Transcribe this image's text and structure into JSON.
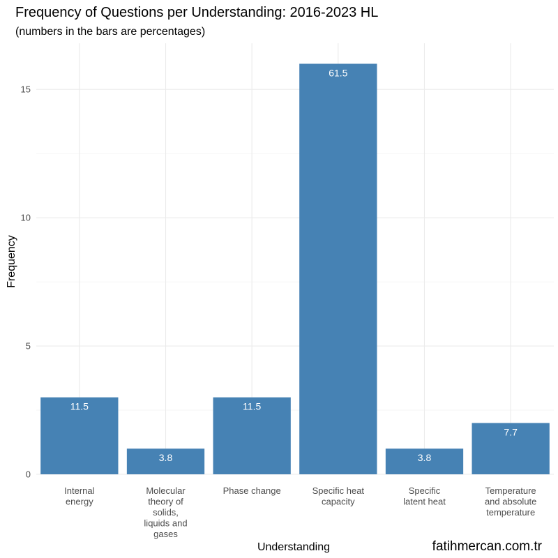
{
  "chart_data": {
    "type": "bar",
    "title": "Frequency of Questions per Understanding: 2016-2023 HL",
    "subtitle": "(numbers in the bars are percentages)",
    "xlabel": "Understanding",
    "ylabel": "Frequency",
    "caption": "fatihmercan.com.tr",
    "categories": [
      [
        "Internal",
        "energy"
      ],
      [
        "Molecular",
        "theory of",
        "solids,",
        "liquids and",
        "gases"
      ],
      [
        "Phase change"
      ],
      [
        "Specific heat",
        "capacity"
      ],
      [
        "Specific",
        "latent heat"
      ],
      [
        "Temperature",
        "and absolute",
        "temperature"
      ]
    ],
    "values": [
      3,
      1,
      3,
      16,
      1,
      2
    ],
    "bar_labels": [
      "11.5",
      "3.8",
      "11.5",
      "61.5",
      "3.8",
      "7.7"
    ],
    "y_ticks": [
      0,
      5,
      10,
      15
    ],
    "ylim": [
      0,
      16.8
    ],
    "grid": true,
    "bar_color": "#4682b4",
    "theme": "minimal"
  }
}
